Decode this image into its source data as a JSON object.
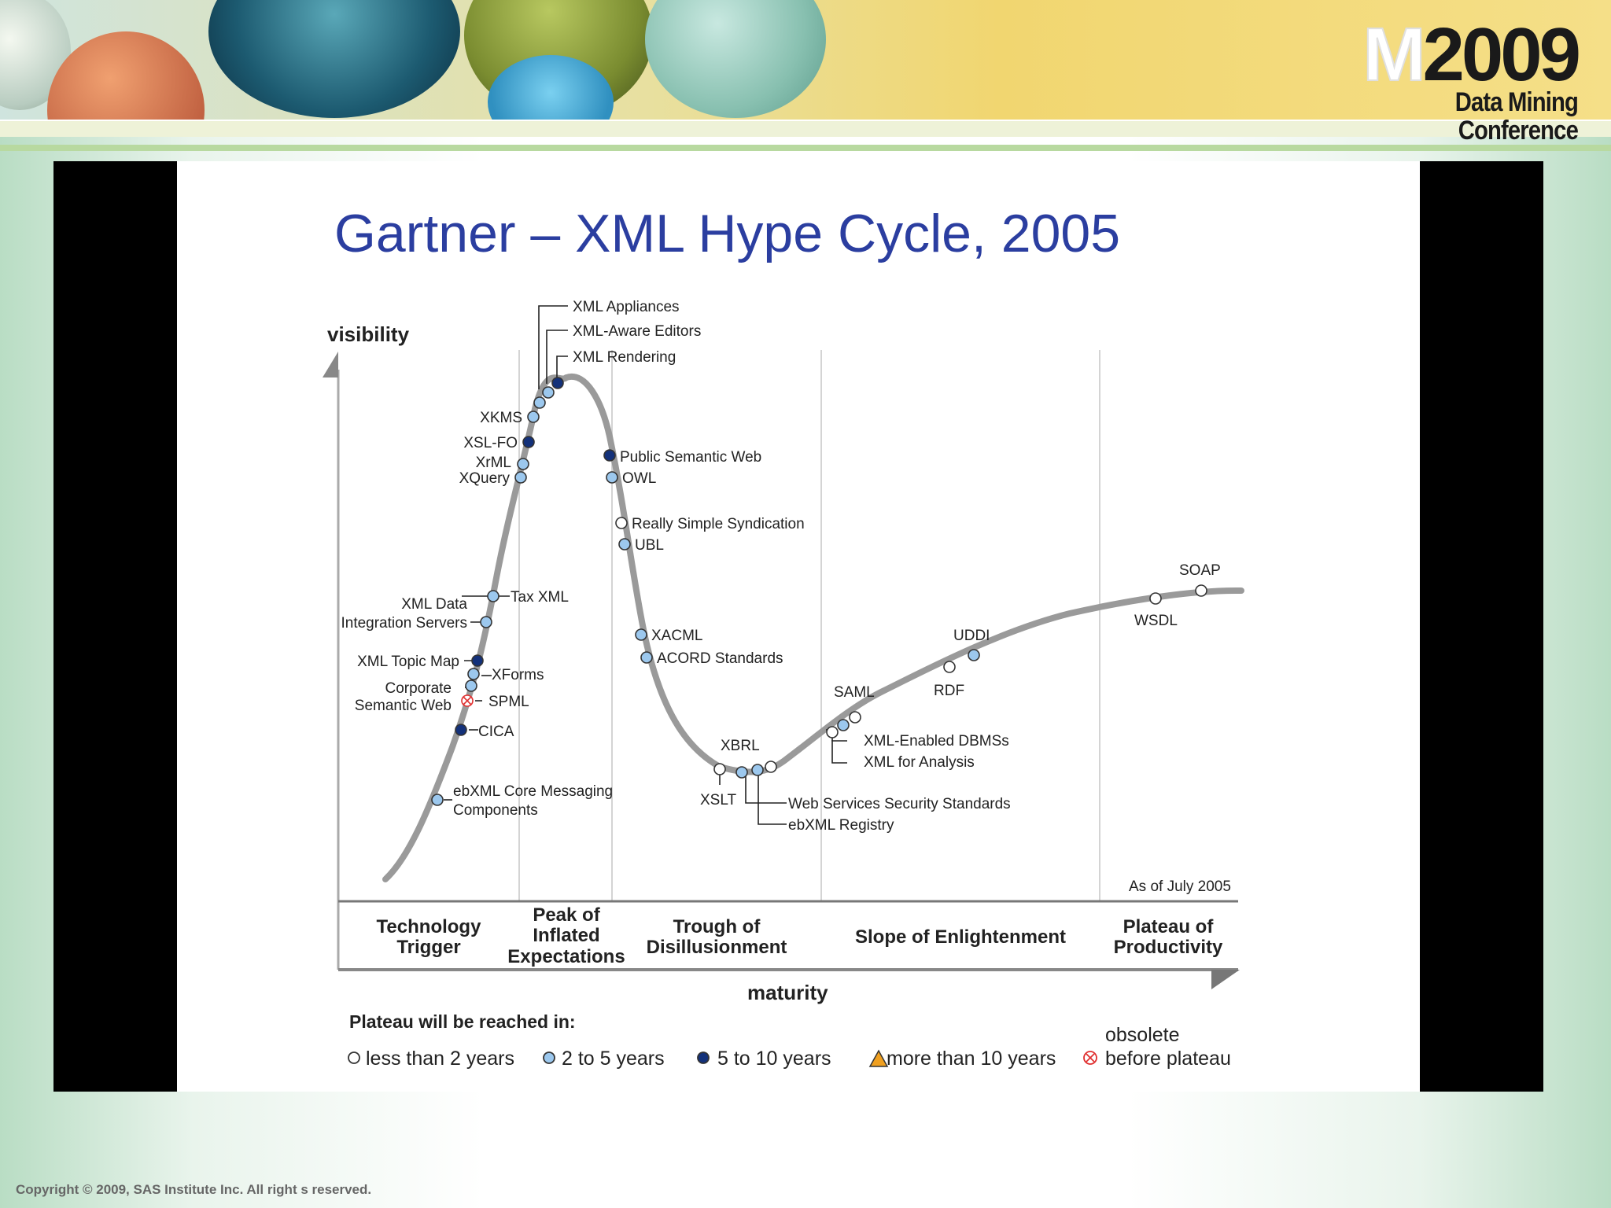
{
  "banner": {
    "logo_prefix": "M",
    "logo_year": "2009",
    "logo_subtitle": "Data Mining Conference"
  },
  "slide": {
    "title": "Gartner – XML Hype Cycle, 2005"
  },
  "chart": {
    "y_axis_label": "visibility",
    "x_axis_label": "maturity",
    "as_of": "As of July 2005",
    "phases": [
      {
        "lines": [
          "Technology",
          "Trigger"
        ]
      },
      {
        "lines": [
          "Peak of",
          "Inflated",
          "Expectations"
        ]
      },
      {
        "lines": [
          "Trough of",
          "Disillusionment"
        ]
      },
      {
        "lines": [
          "Slope of Enlightenment"
        ]
      },
      {
        "lines": [
          "Plateau of",
          "Productivity"
        ]
      }
    ],
    "technologies": {
      "xml_appliances": "XML Appliances",
      "xml_aware_editors": "XML-Aware Editors",
      "xml_rendering": "XML Rendering",
      "xkms": "XKMS",
      "xsl_fo": "XSL-FO",
      "xrml": "XrML",
      "xquery": "XQuery",
      "public_semantic_web": "Public Semantic Web",
      "owl": "OWL",
      "rss": "Really Simple Syndication",
      "ubl": "UBL",
      "tax_xml": "Tax XML",
      "xml_data_integration_1": "XML Data",
      "xml_data_integration_2": "Integration Servers",
      "xml_topic_map": "XML Topic Map",
      "xforms": "XForms",
      "corporate_semantic_web_1": "Corporate",
      "corporate_semantic_web_2": "Semantic Web",
      "spml": "SPML",
      "cica": "CICA",
      "ebxml_messaging_1": "ebXML Core Messaging",
      "ebxml_messaging_2": "Components",
      "xacml": "XACML",
      "acord": "ACORD Standards",
      "xbrl": "XBRL",
      "xslt": "XSLT",
      "ws_security": "Web Services Security Standards",
      "ebxml_registry": "ebXML Registry",
      "saml": "SAML",
      "xml_enabled_dbms": "XML-Enabled DBMSs",
      "xml_for_analysis": "XML for Analysis",
      "rdf": "RDF",
      "uddi": "UDDI",
      "wsdl": "WSDL",
      "soap": "SOAP"
    },
    "legend": {
      "title": "Plateau will be reached in:",
      "less_than_2": "less than 2 years",
      "two_to_five": "2 to 5 years",
      "five_to_ten": "5 to 10 years",
      "more_than_10": "more than 10 years",
      "obsolete_1": "obsolete",
      "obsolete_2": "before plateau"
    },
    "colors": {
      "less_than_2": "#ffffff",
      "two_to_five": "#9cc8ee",
      "five_to_ten": "#13317a",
      "more_than_10": "#f0a020",
      "obsolete": "#e03030",
      "curve": "#9a9a9a"
    }
  },
  "footer": {
    "copyright": "Copyright © 2009,  SAS Institute Inc.  All right s reserved."
  }
}
